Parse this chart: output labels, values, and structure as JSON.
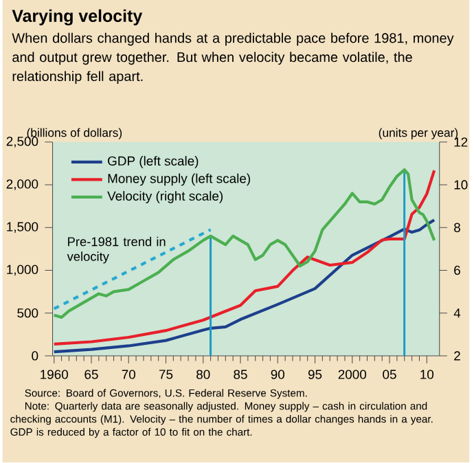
{
  "chart_data": {
    "type": "line",
    "title": "Varying velocity",
    "subtitle": "When dollars changed hands at a predictable pace before 1981, money and output grew together. But when velocity became volatile, the relationship fell apart.",
    "ylabel": "(billions of dollars)",
    "y2label": "(units per year)",
    "xlim": [
      1959.8,
      2011.7
    ],
    "xticks": [
      {
        "value": 1960,
        "label": "1960"
      },
      {
        "value": 1965,
        "label": "65"
      },
      {
        "value": 1970,
        "label": "70"
      },
      {
        "value": 1975,
        "label": "75"
      },
      {
        "value": 1980,
        "label": "80"
      },
      {
        "value": 1985,
        "label": "85"
      },
      {
        "value": 1990,
        "label": "90"
      },
      {
        "value": 1995,
        "label": "95"
      },
      {
        "value": 2000,
        "label": "2000"
      },
      {
        "value": 2005,
        "label": "05"
      },
      {
        "value": 2010,
        "label": "10"
      }
    ],
    "ylim": [
      0,
      2500
    ],
    "yticks": [
      0,
      {
        "value": 500,
        "label": "500"
      },
      {
        "value": 1000,
        "label": "1,000"
      },
      {
        "value": 1500,
        "label": "1,500"
      },
      {
        "value": 2000,
        "label": "2,000"
      },
      {
        "value": 2500,
        "label": "2,500"
      }
    ],
    "y2lim": [
      2,
      12
    ],
    "y2ticks": [
      2,
      4,
      6,
      8,
      10,
      12
    ],
    "legend": "top left",
    "series": [
      {
        "name": "GDP (left scale)",
        "color": "#1d3f8c",
        "x": [
          1960,
          1965,
          1970,
          1975,
          1980,
          1981,
          1983,
          1985,
          1990,
          1995,
          2000,
          2005,
          2007,
          2008,
          2009,
          2010,
          2011
        ],
        "values": [
          47,
          74,
          116,
          179,
          300,
          322,
          338,
          425,
          601,
          786,
          1176,
          1392,
          1482,
          1445,
          1471,
          1535,
          1588
        ]
      },
      {
        "name": "Money supply (left scale)",
        "color": "#e8202a",
        "x": [
          1960,
          1965,
          1970,
          1975,
          1980,
          1983,
          1985,
          1987,
          1990,
          1992,
          1993,
          1994,
          1997,
          2000,
          2002,
          2004,
          2005,
          2007,
          2008,
          2009,
          2010,
          2011
        ],
        "values": [
          137,
          164,
          216,
          295,
          417,
          522,
          590,
          760,
          812,
          997,
          1076,
          1155,
          1060,
          1092,
          1208,
          1355,
          1366,
          1366,
          1656,
          1735,
          1893,
          2168
        ]
      },
      {
        "name": "Velocity (right scale)",
        "color": "#4caf50",
        "axis": "y2",
        "x": [
          1960,
          1961,
          1962,
          1965,
          1966,
          1967,
          1968,
          1970,
          1972,
          1974,
          1976,
          1978,
          1980,
          1981,
          1982,
          1983,
          1984,
          1985,
          1986,
          1987,
          1988,
          1989,
          1990,
          1991,
          1992,
          1993,
          1994,
          1995,
          1996,
          1997,
          1998,
          1999,
          2000,
          2001,
          2002,
          2003,
          2004,
          2005,
          2006,
          2007,
          2007.5,
          2008,
          2009,
          2009.5,
          2010,
          2011
        ],
        "values": [
          3.9,
          3.8,
          4.1,
          4.7,
          4.9,
          4.8,
          5.0,
          5.1,
          5.5,
          5.9,
          6.5,
          6.9,
          7.4,
          7.6,
          7.4,
          7.2,
          7.6,
          7.4,
          7.2,
          6.5,
          6.7,
          7.2,
          7.4,
          7.2,
          6.7,
          6.2,
          6.4,
          6.9,
          7.9,
          8.3,
          8.7,
          9.1,
          9.6,
          9.2,
          9.2,
          9.1,
          9.3,
          9.9,
          10.4,
          10.7,
          10.5,
          9.3,
          8.7,
          8.6,
          8.3,
          7.4
        ]
      },
      {
        "name": "Pre-1981 trend in velocity",
        "color": "#29a8d0",
        "axis": "y2",
        "line_style": "dashed",
        "x": [
          1960,
          1981
        ],
        "values": [
          4.2,
          7.9
        ]
      }
    ],
    "ref_lines": [
      {
        "axis": "x",
        "value": 1981,
        "color": "#1a9cc4"
      },
      {
        "axis": "x",
        "value": 2007,
        "color": "#1a9cc4"
      }
    ],
    "annotations": [
      "Source: Board of Governors, U.S. Federal Reserve System.",
      "Note: Quarterly data are seasonally adjusted. Money supply – cash in circulation and checking accounts (M1). Velocity – the number of times a dollar changes hands in a year. GDP is reduced by a factor of 10 to fit on the chart."
    ]
  }
}
